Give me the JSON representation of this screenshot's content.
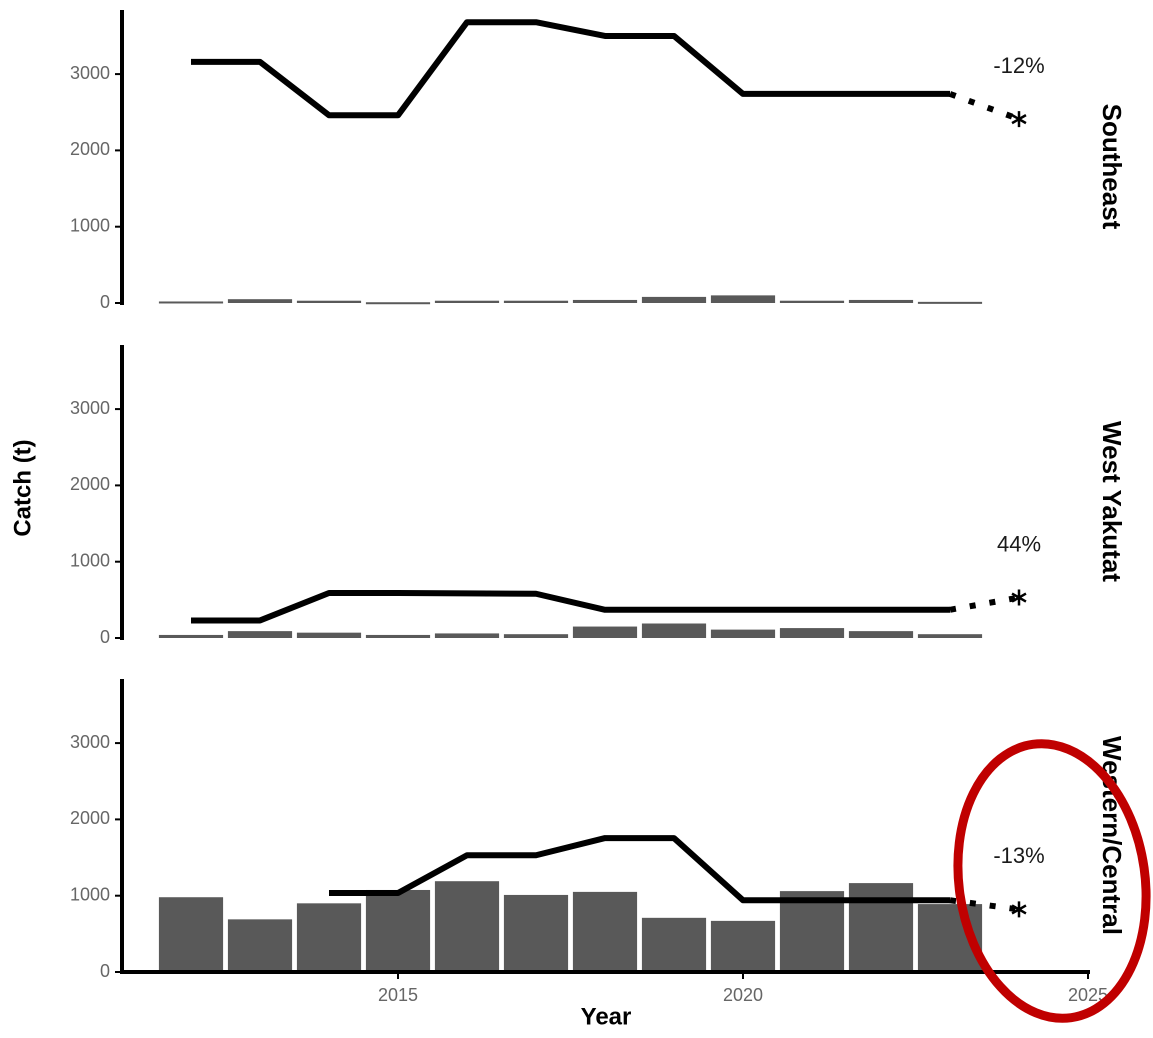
{
  "chart_data": {
    "type": "facet",
    "ylabel": "Catch (t)",
    "xlabel": "Year",
    "xlim": [
      2011,
      2025
    ],
    "xticks": [
      2015,
      2020,
      2025
    ],
    "ylim": [
      0,
      3840
    ],
    "yticks": [
      0,
      1000,
      2000,
      3000
    ],
    "x": [
      2012,
      2013,
      2014,
      2015,
      2016,
      2017,
      2018,
      2019,
      2020,
      2021,
      2022,
      2023
    ],
    "bar_color": "#595959",
    "line_color": "#000000",
    "panels": [
      {
        "title": "Southeast",
        "bars": [
          20,
          50,
          30,
          10,
          30,
          30,
          40,
          80,
          100,
          30,
          40,
          15
        ],
        "line": [
          3160,
          3160,
          2460,
          2460,
          3680,
          3680,
          3500,
          3500,
          2740,
          2740,
          2740,
          2740
        ],
        "projection": {
          "x": 2024,
          "value": 2410,
          "label": "-12%"
        }
      },
      {
        "title": "West Yakutat",
        "bars": [
          40,
          90,
          70,
          40,
          60,
          50,
          150,
          190,
          110,
          130,
          90,
          50
        ],
        "line": [
          230,
          230,
          590,
          590,
          585,
          580,
          370,
          370,
          370,
          370,
          370,
          370
        ],
        "projection": {
          "x": 2024,
          "value": 530,
          "label": "44%"
        }
      },
      {
        "title": "Western/Central",
        "bars": [
          980,
          690,
          900,
          1075,
          1190,
          1010,
          1050,
          710,
          670,
          1060,
          1165,
          890
        ],
        "line": [
          null,
          null,
          1035,
          1035,
          1530,
          1530,
          1755,
          1755,
          940,
          940,
          940,
          940
        ],
        "projection": {
          "x": 2024,
          "value": 820,
          "label": "-13%"
        }
      }
    ]
  }
}
